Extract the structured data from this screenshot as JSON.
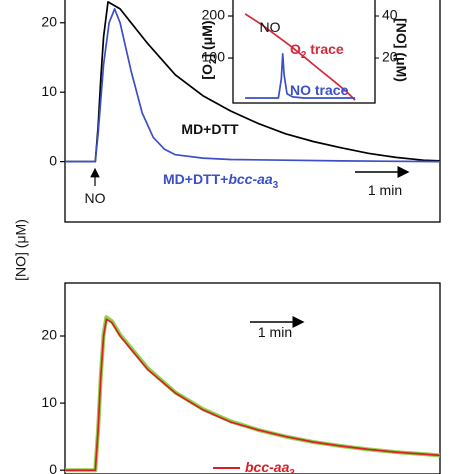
{
  "chart_data": [
    {
      "type": "line",
      "y_label": "[NO] (μM)",
      "xlim": [
        0,
        6.8
      ],
      "ylim": [
        -8.7,
        24
      ],
      "yticks": [
        0,
        10,
        20
      ],
      "series": [
        {
          "color": "#000000",
          "x": [
            0,
            0.5,
            0.55,
            0.6,
            0.65,
            0.7,
            0.78,
            1.0,
            1.5,
            2,
            2.5,
            3,
            3.5,
            4,
            4.5,
            5,
            5.5,
            6,
            6.5,
            6.8
          ],
          "values": [
            0,
            0,
            0,
            5,
            12,
            18,
            23,
            22,
            17,
            12.5,
            9.5,
            7.3,
            5.5,
            4,
            2.9,
            2,
            1.2,
            0.6,
            0.2,
            0.1
          ]
        },
        {
          "color": "#3a4fc8",
          "x": [
            0,
            0.5,
            0.55,
            0.6,
            0.7,
            0.8,
            0.9,
            1.0,
            1.2,
            1.4,
            1.6,
            1.8,
            2,
            2.5,
            3,
            4,
            5,
            6.8
          ],
          "values": [
            0,
            0,
            0,
            4,
            14,
            20,
            22,
            20,
            13,
            7,
            3.5,
            1.8,
            1,
            0.5,
            0.3,
            0.2,
            0.1,
            0
          ]
        }
      ],
      "annotations": [
        [
          "NO"
        ],
        [
          "MD+DTT"
        ],
        [
          "MD+DTT+",
          "bcc-aa",
          "3"
        ],
        [
          "1 min"
        ]
      ]
    },
    {
      "type": "line",
      "y_label": [
        "[O",
        "2",
        "] (μM)"
      ],
      "y2_label": "[NO] (μM)",
      "xlim": [
        0,
        10
      ],
      "ylim": [
        -7,
        250
      ],
      "yticks": [
        100,
        200
      ],
      "y2lim": [
        -1.4,
        50
      ],
      "y2ticks": [
        20,
        40
      ],
      "series": [
        {
          "color": "#d42a3a",
          "x": [
            0.85,
            2,
            3,
            4,
            5,
            6,
            7,
            8,
            8.6
          ],
          "values": [
            205,
            180,
            155,
            130,
            103,
            75,
            48,
            20,
            0
          ]
        },
        {
          "color": "#3a4fc8",
          "axis": "y2",
          "x": [
            0.85,
            3.2,
            3.4,
            3.5,
            3.6,
            3.8,
            4.2,
            5,
            8.6
          ],
          "values": [
            1,
            1,
            10,
            22,
            12,
            3,
            1.5,
            1,
            1
          ]
        }
      ],
      "annotations": [
        [
          "NO"
        ],
        [
          "O",
          "2",
          " trace"
        ],
        [
          "NO trace"
        ]
      ]
    },
    {
      "type": "line",
      "xlim": [
        0,
        6.8
      ],
      "ylim": [
        -0.57,
        27.9
      ],
      "yticks": [
        0,
        10,
        20
      ],
      "series": [
        {
          "color": "#8ed14a",
          "x": [
            0,
            0.5,
            0.55,
            0.6,
            0.65,
            0.7,
            0.75,
            0.85,
            1,
            1.5,
            2,
            2.5,
            3,
            3.5,
            4,
            4.5,
            5,
            5.5,
            6,
            6.5,
            6.8
          ],
          "values": [
            0,
            0,
            0,
            6,
            14,
            20.3,
            22.8,
            22.2,
            20.2,
            15.2,
            11.6,
            9.1,
            7.3,
            6,
            5,
            4.2,
            3.6,
            3.1,
            2.7,
            2.4,
            2.2
          ]
        },
        {
          "color": "#d9202a",
          "x": [
            0,
            0.5,
            0.55,
            0.6,
            0.65,
            0.7,
            0.75,
            0.85,
            1,
            1.5,
            2,
            2.5,
            3,
            3.5,
            4,
            4.5,
            5,
            5.5,
            6,
            6.5,
            6.8
          ],
          "values": [
            0,
            0,
            0,
            6,
            14,
            20,
            22.5,
            22,
            20,
            15,
            11.5,
            9,
            7.2,
            6,
            5,
            4.2,
            3.6,
            3.1,
            2.7,
            2.4,
            2.2
          ]
        }
      ],
      "annotations": [
        [
          "1 min"
        ],
        [
          "bcc-aa",
          "3"
        ]
      ]
    }
  ]
}
